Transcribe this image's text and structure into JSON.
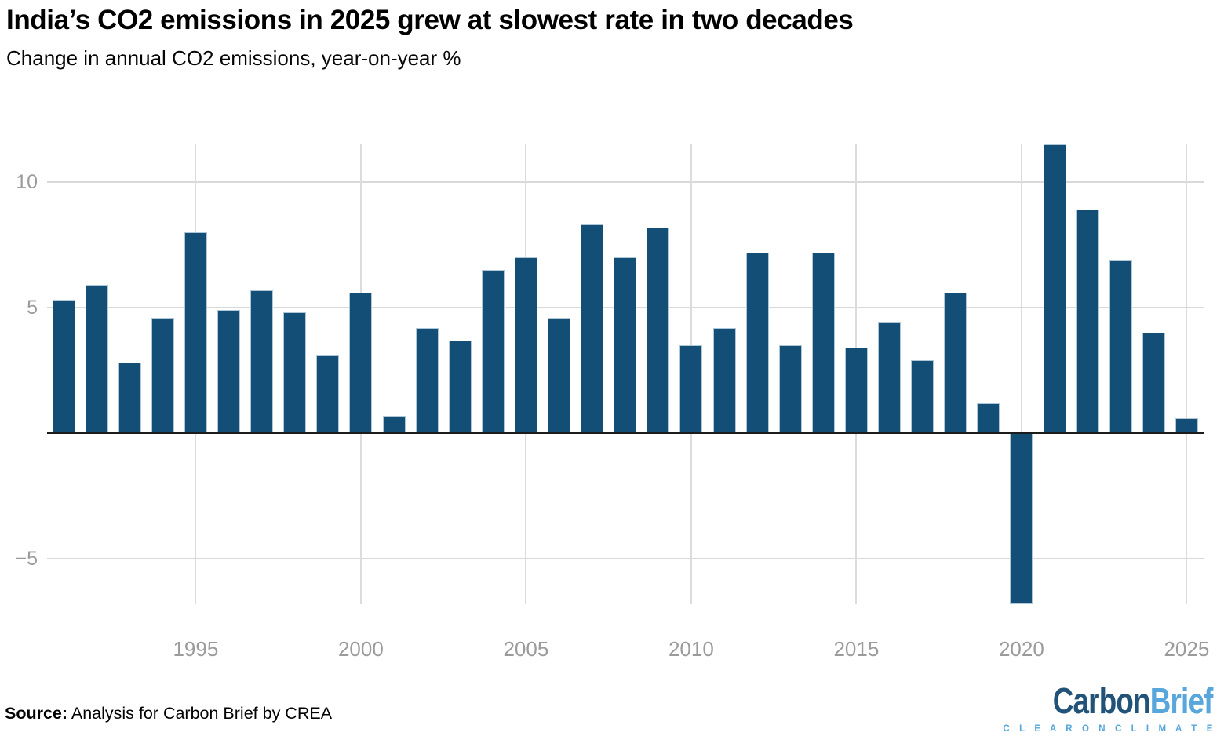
{
  "header": {
    "title": "India’s CO2 emissions in 2025 grew at slowest rate in two decades",
    "subtitle": "Change in annual CO2 emissions, year-on-year %"
  },
  "chart_data": {
    "type": "bar",
    "title": "India’s CO2 emissions in 2025 grew at slowest rate in two decades",
    "subtitle": "Change in annual CO2 emissions, year-on-year %",
    "unit": "%",
    "x": [
      1991,
      1992,
      1993,
      1994,
      1995,
      1996,
      1997,
      1998,
      1999,
      2000,
      2001,
      2002,
      2003,
      2004,
      2005,
      2006,
      2007,
      2008,
      2009,
      2010,
      2011,
      2012,
      2013,
      2014,
      2015,
      2016,
      2017,
      2018,
      2019,
      2020,
      2021,
      2022,
      2023,
      2024,
      2025
    ],
    "values": [
      5.3,
      5.9,
      2.8,
      4.6,
      8.0,
      4.9,
      5.7,
      4.8,
      3.1,
      5.6,
      0.7,
      4.2,
      3.7,
      6.5,
      7.0,
      4.6,
      8.3,
      7.0,
      8.2,
      3.5,
      4.2,
      7.2,
      3.5,
      7.2,
      3.4,
      4.4,
      2.9,
      5.6,
      1.2,
      -6.8,
      11.5,
      8.9,
      6.9,
      4.0,
      0.6
    ],
    "x_ticks": [
      1995,
      2000,
      2005,
      2010,
      2015,
      2020,
      2025
    ],
    "y_ticks": [
      {
        "value": 10,
        "label": "10"
      },
      {
        "value": 5,
        "label": "5"
      },
      {
        "value": -5,
        "label": "−5"
      }
    ],
    "ylim": [
      -6.8,
      11.5
    ],
    "grid": true,
    "legend": null,
    "bar_color": "#124e76"
  },
  "footer": {
    "source_label": "Source:",
    "source_text": " Analysis for Carbon Brief by CREA",
    "logo": {
      "part1": "Carbon",
      "part2": "Brief",
      "tagline": "C L E A R   O N   C L I M A T E",
      "color_dark": "#215278",
      "color_light": "#57a7dc"
    }
  }
}
